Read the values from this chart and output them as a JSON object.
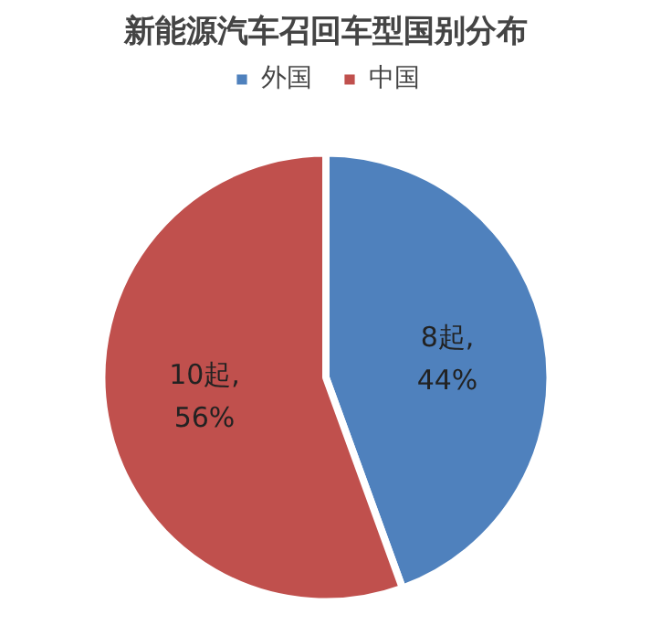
{
  "chart_data": {
    "type": "pie",
    "title": "新能源汽车召回车型国别分布",
    "categories": [
      "外国",
      "中国"
    ],
    "values": [
      8,
      10
    ],
    "colors": [
      "#4f81bd",
      "#c0504d"
    ],
    "value_labels": [
      "8起,\n44%",
      "10起,\n56%"
    ],
    "legend": "top"
  }
}
